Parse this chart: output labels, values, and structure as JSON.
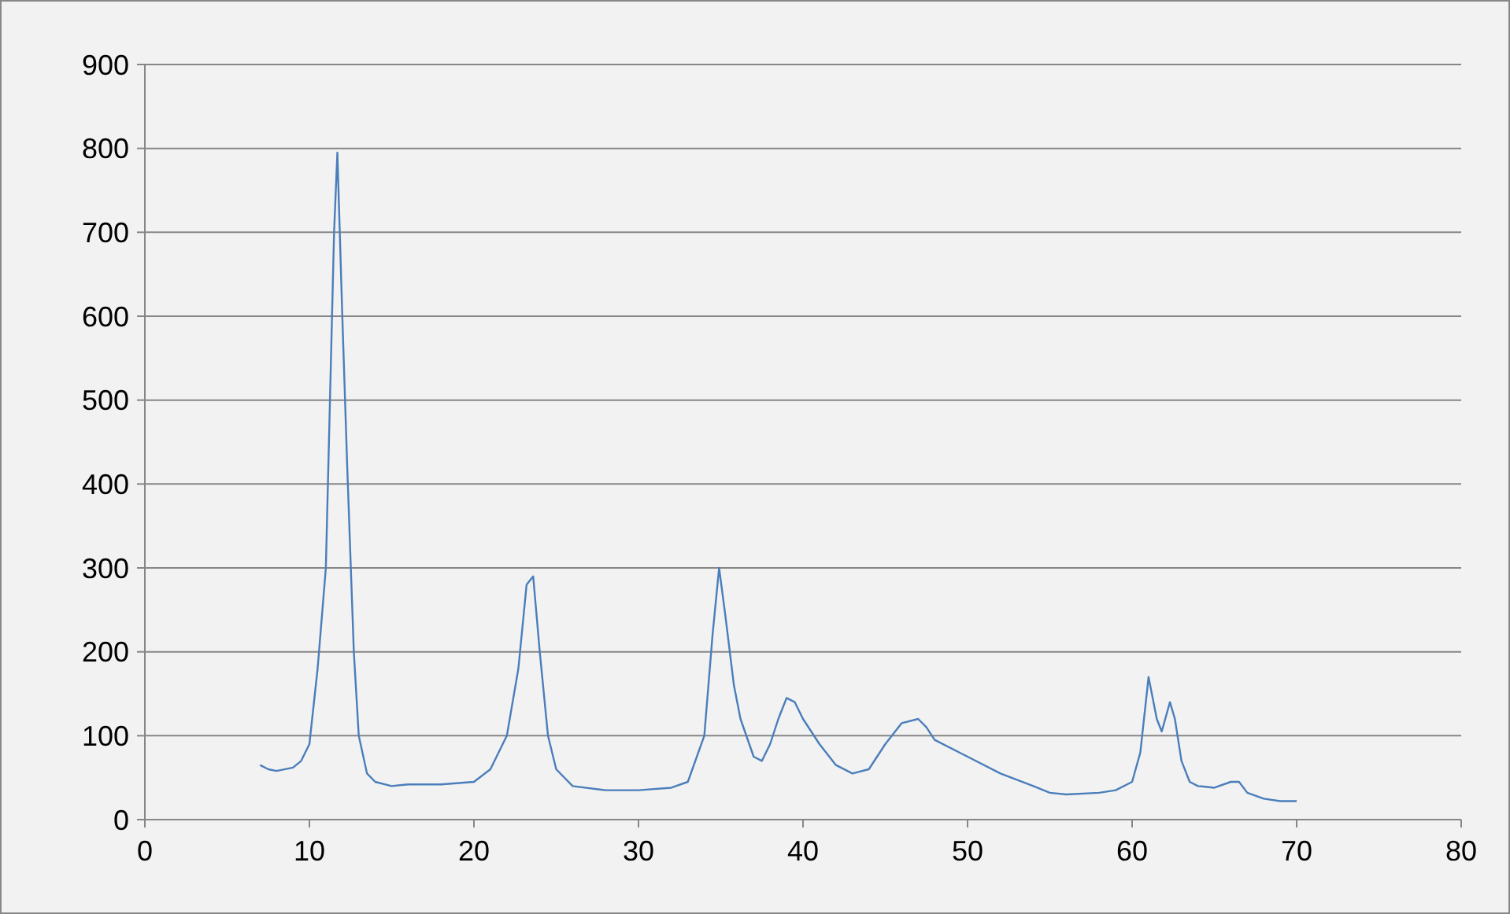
{
  "chart_data": {
    "type": "line",
    "xlim": [
      0,
      80
    ],
    "xticks": [
      0,
      10,
      20,
      30,
      40,
      50,
      60,
      70,
      80
    ],
    "ylim": [
      0,
      900
    ],
    "yticks": [
      0,
      100,
      200,
      300,
      400,
      500,
      600,
      700,
      800,
      900
    ],
    "grid": "y",
    "marker": "none",
    "line_style": "solid",
    "series": [
      {
        "color": "#4a7ebb",
        "x": [
          7,
          7.5,
          8,
          9,
          9.5,
          10,
          10.5,
          11,
          11.5,
          11.7,
          12,
          12.3,
          12.7,
          13,
          13.5,
          14,
          15,
          16,
          18,
          20,
          21,
          22,
          22.7,
          23.2,
          23.6,
          24,
          24.5,
          25,
          26,
          28,
          30,
          32,
          33,
          34,
          34.5,
          34.9,
          35.3,
          35.8,
          36.2,
          37,
          37.5,
          38,
          38.5,
          39,
          39.5,
          40,
          41,
          42,
          43,
          44,
          45,
          46,
          47,
          47.5,
          48,
          50,
          52,
          54,
          55,
          56,
          58,
          59,
          60,
          60.5,
          61,
          61.5,
          61.8,
          62.3,
          62.6,
          63,
          63.5,
          64,
          65,
          66,
          66.5,
          67,
          68,
          69,
          70
        ],
        "values": [
          65,
          60,
          58,
          62,
          70,
          90,
          180,
          300,
          700,
          795,
          600,
          420,
          200,
          100,
          55,
          45,
          40,
          42,
          42,
          45,
          60,
          100,
          180,
          280,
          290,
          200,
          100,
          60,
          40,
          35,
          35,
          38,
          45,
          100,
          220,
          300,
          240,
          160,
          120,
          75,
          70,
          90,
          120,
          145,
          140,
          120,
          90,
          65,
          55,
          60,
          90,
          115,
          120,
          110,
          95,
          75,
          55,
          40,
          32,
          30,
          32,
          35,
          45,
          80,
          170,
          120,
          105,
          140,
          120,
          70,
          45,
          40,
          38,
          45,
          45,
          32,
          25,
          22,
          22
        ]
      }
    ]
  }
}
